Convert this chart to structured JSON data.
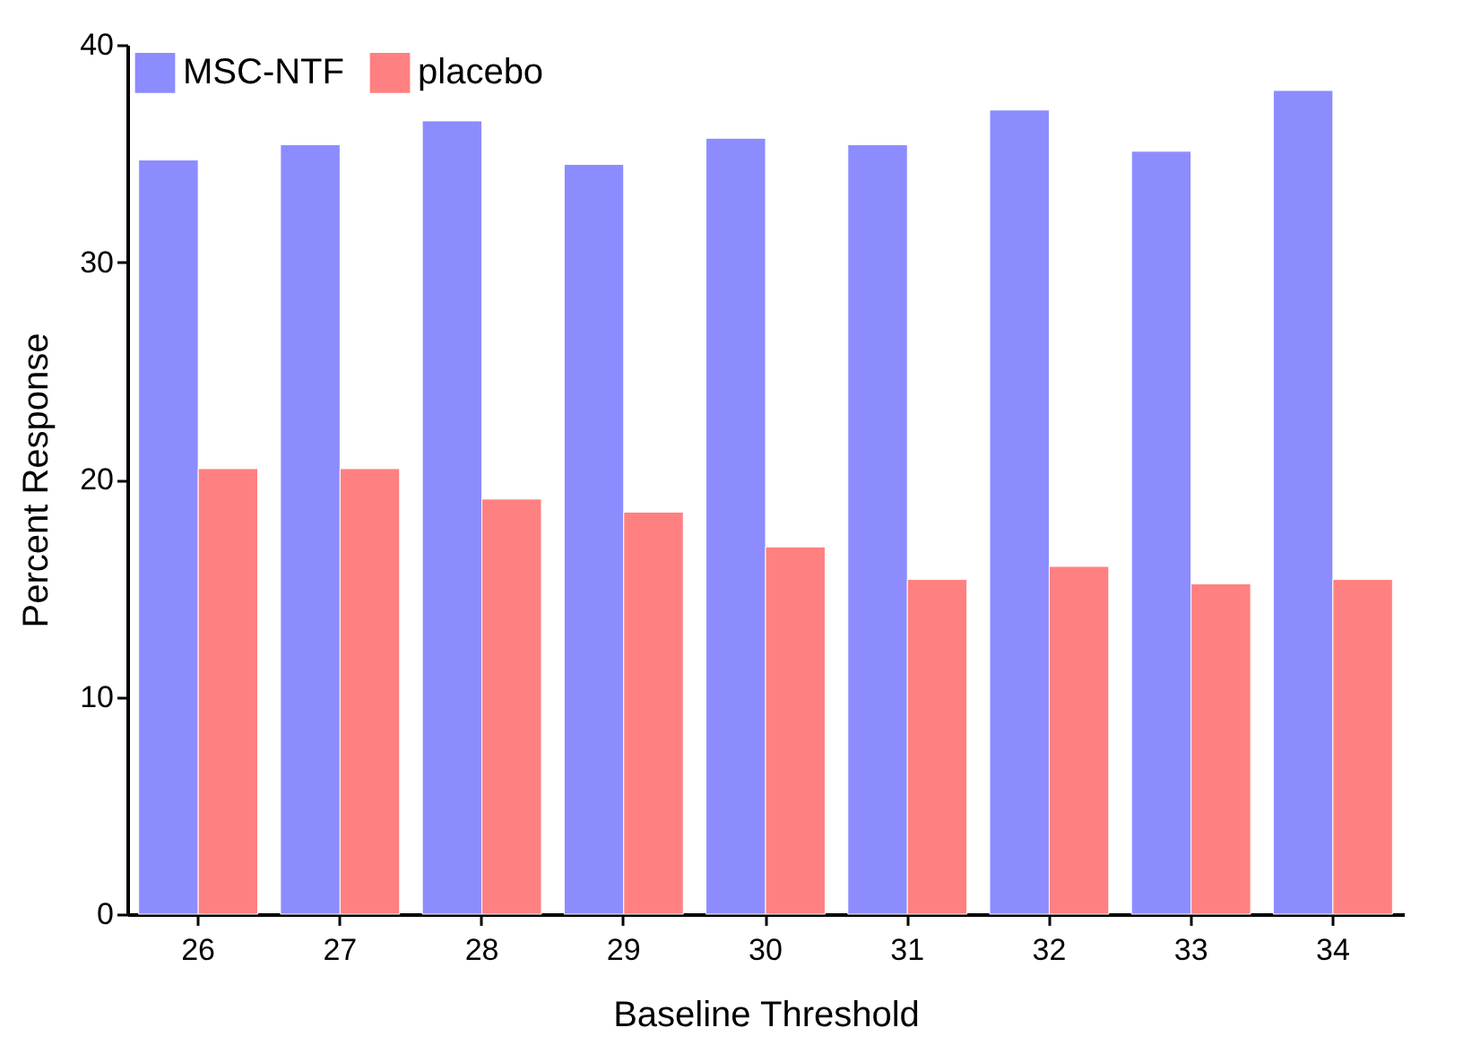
{
  "chart_data": {
    "type": "bar",
    "xlabel": "Baseline  Threshold",
    "ylabel": "Percent Response",
    "categories": [
      "26",
      "27",
      "28",
      "29",
      "30",
      "31",
      "32",
      "33",
      "34"
    ],
    "series": [
      {
        "name": "MSC-NTF",
        "color": "#8c8cff",
        "values": [
          34.7,
          35.4,
          36.5,
          34.5,
          35.7,
          35.4,
          37.0,
          35.1,
          37.9
        ]
      },
      {
        "name": "placebo",
        "color": "#ff8080",
        "values": [
          20.5,
          20.5,
          19.1,
          18.5,
          16.9,
          15.4,
          16.0,
          15.2,
          15.4
        ]
      }
    ],
    "ylim": [
      0,
      40
    ],
    "yticks": [
      0,
      10,
      20,
      30,
      40
    ],
    "grid": false,
    "legend": "top left"
  }
}
